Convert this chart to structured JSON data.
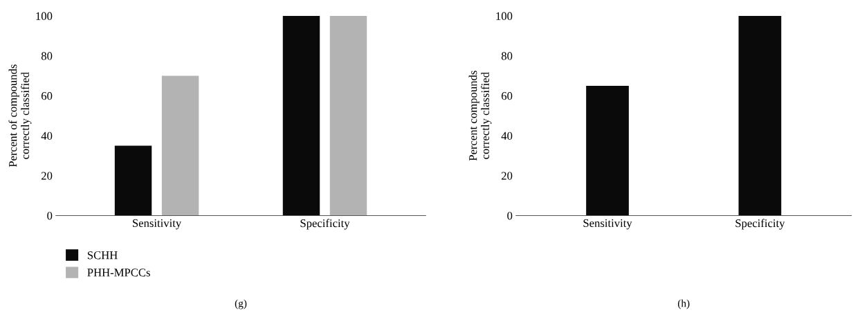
{
  "chart_data": [
    {
      "type": "bar",
      "ylabel": "Percent of compounds\ncorrectly classified",
      "categories": [
        "Sensitivity",
        "Specificity"
      ],
      "series": [
        {
          "name": "SCHH",
          "color": "#0a0a0a",
          "values": [
            35,
            100
          ]
        },
        {
          "name": "PHH-MPCCs",
          "color": "#b3b3b3",
          "values": [
            70,
            100
          ]
        }
      ],
      "ylim": [
        0,
        100
      ],
      "yticks": [
        0,
        20,
        40,
        60,
        80,
        100
      ],
      "legend": "bottom left",
      "annotations": [
        "(g)"
      ]
    },
    {
      "type": "bar",
      "ylabel": "Percent compounds\ncorrectly classified",
      "categories": [
        "Sensitivity",
        "Specificity"
      ],
      "series": [
        {
          "color": "#0a0a0a",
          "values": [
            65,
            100
          ]
        }
      ],
      "ylim": [
        0,
        100
      ],
      "yticks": [
        0,
        20,
        40,
        60,
        80,
        100
      ],
      "annotations": [
        "(h)"
      ]
    }
  ]
}
